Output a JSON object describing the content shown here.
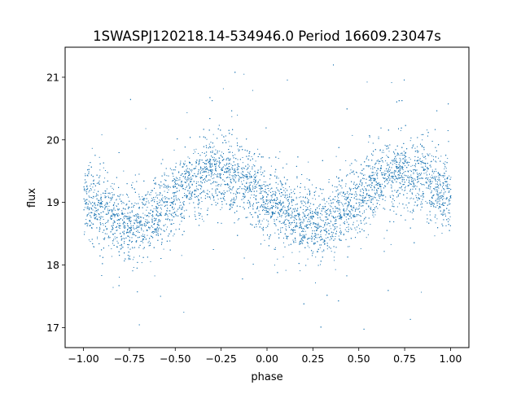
{
  "chart_data": {
    "type": "scatter",
    "title": "1SWASPJ120218.14-534946.0 Period 16609.23047s",
    "xlabel": "phase",
    "ylabel": "flux",
    "xlim": [
      -1.1,
      1.1
    ],
    "ylim": [
      16.68,
      21.48
    ],
    "xticks": [
      -1.0,
      -0.75,
      -0.5,
      -0.25,
      0.0,
      0.25,
      0.5,
      0.75,
      1.0
    ],
    "xtick_labels": [
      "−1.00",
      "−0.75",
      "−0.50",
      "−0.25",
      "0.00",
      "0.25",
      "0.50",
      "0.75",
      "1.00"
    ],
    "yticks": [
      17,
      18,
      19,
      20,
      21
    ],
    "ytick_labels": [
      "17",
      "18",
      "19",
      "20",
      "21"
    ],
    "grid": false,
    "marker_color": "#1f77b4",
    "series": [
      {
        "phase": [
          -1.0,
          -0.95,
          -0.9,
          -0.85,
          -0.8,
          -0.75,
          -0.7,
          -0.65,
          -0.6,
          -0.55,
          -0.5,
          -0.45,
          -0.4,
          -0.35,
          -0.3,
          -0.25,
          -0.2,
          -0.15,
          -0.1,
          -0.05,
          0.0,
          0.05,
          0.1,
          0.15,
          0.2,
          0.25,
          0.3,
          0.35,
          0.4,
          0.45,
          0.5,
          0.55,
          0.6,
          0.65,
          0.7,
          0.75,
          0.8,
          0.85,
          0.9,
          0.95,
          1.0
        ],
        "flux_median": [
          19.05,
          18.95,
          18.85,
          18.75,
          18.68,
          18.65,
          18.67,
          18.73,
          18.85,
          18.98,
          19.1,
          19.22,
          19.33,
          19.42,
          19.47,
          19.48,
          19.45,
          19.38,
          19.28,
          19.15,
          19.05,
          18.95,
          18.85,
          18.75,
          18.68,
          18.65,
          18.67,
          18.73,
          18.85,
          18.98,
          19.1,
          19.22,
          19.33,
          19.42,
          19.47,
          19.48,
          19.45,
          19.38,
          19.28,
          19.15,
          19.05
        ]
      }
    ]
  }
}
